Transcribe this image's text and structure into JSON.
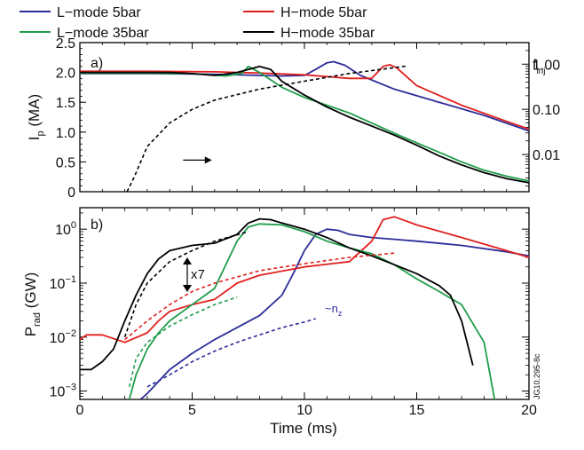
{
  "chart_data": [
    {
      "type": "line",
      "panel_label": "a)",
      "ylabel_main": "I",
      "ylabel_sub": "p",
      "ylabel_unit": " (MA)",
      "ylim": [
        0,
        2.5
      ],
      "yticks": [
        "0",
        "0.5",
        "1.0",
        "1.5",
        "2.0",
        "2.5"
      ],
      "xlim": [
        0,
        20
      ],
      "right_axis": {
        "label_main": "f",
        "label_sub": "inj",
        "scale": "log",
        "ylim": [
          0.0015,
          3.0
        ],
        "yticks": [
          "0.01",
          "0.10",
          "1.00"
        ]
      },
      "series": [
        {
          "name": "L−mode 5bar",
          "color": "#2d2d9a",
          "dash": "solid",
          "x": [
            0,
            3,
            6,
            8,
            9,
            10,
            10.5,
            11,
            11.3,
            11.8,
            12.5,
            14,
            16,
            18,
            20
          ],
          "y": [
            1.98,
            1.98,
            1.97,
            1.95,
            1.94,
            1.95,
            2.05,
            2.16,
            2.18,
            2.12,
            1.95,
            1.72,
            1.5,
            1.28,
            1.02
          ]
        },
        {
          "name": "H−mode 5bar",
          "color": "#e0201e",
          "dash": "solid",
          "x": [
            0,
            3,
            6,
            8,
            10,
            12,
            13,
            13.5,
            13.8,
            14.1,
            15,
            17,
            19,
            20
          ],
          "y": [
            2.02,
            2.02,
            2.01,
            1.99,
            1.96,
            1.9,
            1.9,
            2.1,
            2.13,
            2.08,
            1.78,
            1.45,
            1.18,
            1.05
          ]
        },
        {
          "name": "L−mode 35bar",
          "color": "#1f9e4a",
          "dash": "solid",
          "x": [
            0,
            3,
            5,
            6.5,
            7.2,
            7.5,
            8,
            9,
            10,
            11,
            12,
            13,
            14,
            15,
            16,
            17,
            18,
            19,
            20
          ],
          "y": [
            1.99,
            1.99,
            1.98,
            1.94,
            1.98,
            2.1,
            2.0,
            1.75,
            1.58,
            1.45,
            1.32,
            1.15,
            0.98,
            0.82,
            0.66,
            0.5,
            0.36,
            0.26,
            0.18
          ]
        },
        {
          "name": "H−mode 35bar",
          "color": "#000000",
          "dash": "solid",
          "x": [
            0,
            3,
            4,
            5,
            6,
            7,
            7.5,
            8,
            8.5,
            9,
            10,
            11,
            12,
            13,
            14,
            15,
            16,
            17,
            18,
            19,
            20
          ],
          "y": [
            2.0,
            2.0,
            2.0,
            1.98,
            1.95,
            2.0,
            2.05,
            2.1,
            2.05,
            1.85,
            1.62,
            1.42,
            1.25,
            1.1,
            0.95,
            0.78,
            0.6,
            0.45,
            0.32,
            0.22,
            0.15
          ]
        },
        {
          "name": "",
          "color": "#000000",
          "dash": "dashed",
          "axis": "right",
          "x": [
            2.1,
            2.4,
            3,
            4,
            5,
            6,
            8,
            10,
            12,
            14.5
          ],
          "y": [
            0.0015,
            0.003,
            0.015,
            0.05,
            0.1,
            0.16,
            0.28,
            0.42,
            0.62,
            0.9
          ]
        }
      ],
      "annotations": [
        {
          "type": "arrow",
          "direction": "right",
          "from": [
            4.6,
            0.5
          ],
          "to": [
            5.8,
            0.5
          ]
        }
      ]
    },
    {
      "type": "line",
      "panel_label": "b)",
      "ylabel_main": "P",
      "ylabel_sub": "rad",
      "ylabel_unit": " (GW)",
      "scale": "log",
      "ylim": [
        0.0007,
        2.5
      ],
      "yticks": [
        {
          "base": "10",
          "exp": "0"
        },
        {
          "base": "10",
          "exp": "−1"
        },
        {
          "base": "10",
          "exp": "−2"
        },
        {
          "base": "10",
          "exp": "−3"
        }
      ],
      "xlim": [
        0,
        20
      ],
      "xticks": [
        "0",
        "5",
        "10",
        "15",
        "20"
      ],
      "xlabel": "Time (ms)",
      "series": [
        {
          "name": "L−mode 5bar",
          "color": "#2d2d9a",
          "dash": "solid",
          "x": [
            2.7,
            3,
            4,
            5,
            6,
            7,
            8,
            9,
            9.5,
            10,
            10.5,
            11,
            11.5,
            12,
            13,
            14,
            15,
            17,
            19,
            20
          ],
          "y": [
            0.0007,
            0.0009,
            0.0025,
            0.005,
            0.009,
            0.015,
            0.025,
            0.06,
            0.15,
            0.4,
            0.8,
            1.0,
            0.95,
            0.8,
            0.7,
            0.65,
            0.6,
            0.5,
            0.38,
            0.32
          ]
        },
        {
          "name": "H−mode 5bar",
          "color": "#e0201e",
          "dash": "solid",
          "x": [
            0,
            0.3,
            1,
            2,
            3,
            3.5,
            4,
            5,
            6,
            7,
            8,
            10,
            12,
            13,
            13.5,
            14,
            15,
            17,
            19,
            20
          ],
          "y": [
            0.009,
            0.011,
            0.011,
            0.008,
            0.012,
            0.02,
            0.03,
            0.04,
            0.05,
            0.1,
            0.14,
            0.2,
            0.25,
            0.6,
            1.5,
            1.7,
            1.2,
            0.7,
            0.4,
            0.3
          ]
        },
        {
          "name": "L−mode 35bar",
          "color": "#1f9e4a",
          "dash": "solid",
          "x": [
            2.2,
            2.5,
            3,
            3.5,
            4,
            5,
            6,
            7,
            7.5,
            8,
            9,
            10,
            11,
            12,
            13,
            14,
            15,
            16,
            17,
            18,
            18.5
          ],
          "y": [
            0.0007,
            0.002,
            0.006,
            0.012,
            0.02,
            0.04,
            0.08,
            0.6,
            1.1,
            1.25,
            1.2,
            0.9,
            0.6,
            0.45,
            0.35,
            0.22,
            0.12,
            0.07,
            0.04,
            0.008,
            0.0006
          ]
        },
        {
          "name": "H−mode 35bar",
          "color": "#000000",
          "dash": "solid",
          "x": [
            0,
            0.5,
            1,
            1.5,
            2,
            2.5,
            3,
            3.5,
            4,
            5,
            6,
            7,
            7.5,
            8,
            8.5,
            9,
            10,
            11,
            12,
            13,
            14,
            15,
            16,
            16.5,
            17,
            17.5
          ],
          "y": [
            0.0025,
            0.0025,
            0.0035,
            0.006,
            0.02,
            0.06,
            0.15,
            0.28,
            0.4,
            0.5,
            0.55,
            0.8,
            1.3,
            1.55,
            1.5,
            1.3,
            1.0,
            0.7,
            0.45,
            0.32,
            0.22,
            0.15,
            0.09,
            0.06,
            0.02,
            0.003
          ]
        },
        {
          "name": "",
          "color": "#000000",
          "dash": "dashed",
          "x": [
            2,
            2.5,
            3,
            4,
            5,
            6,
            7.5
          ],
          "y": [
            0.01,
            0.04,
            0.1,
            0.25,
            0.4,
            0.6,
            0.9
          ]
        },
        {
          "name": "",
          "color": "#e0201e",
          "dash": "dashed",
          "x": [
            2,
            3,
            4,
            5,
            6,
            8,
            10,
            12,
            14
          ],
          "y": [
            0.009,
            0.02,
            0.04,
            0.07,
            0.1,
            0.17,
            0.23,
            0.3,
            0.36
          ]
        },
        {
          "name": "",
          "color": "#1f9e4a",
          "dash": "dashed",
          "x": [
            2.2,
            2.5,
            3,
            4,
            5,
            6,
            7
          ],
          "y": [
            0.0012,
            0.004,
            0.008,
            0.016,
            0.026,
            0.04,
            0.055
          ]
        },
        {
          "name": "",
          "color": "#2d2d9a",
          "dash": "dashed",
          "x": [
            3,
            4,
            5,
            6,
            7,
            8,
            9,
            10,
            10.5
          ],
          "y": [
            0.0012,
            0.002,
            0.0035,
            0.0055,
            0.008,
            0.011,
            0.015,
            0.019,
            0.022
          ]
        }
      ],
      "annotations": [
        {
          "type": "text",
          "text": "x7"
        },
        {
          "type": "text",
          "text_main": "~n",
          "text_sub": "z",
          "color": "#2d2d9a"
        }
      ]
    }
  ],
  "legend": {
    "placement": "top",
    "entries": [
      {
        "label": "L−mode 5bar",
        "color": "#2d2d9a"
      },
      {
        "label": "H−mode 5bar",
        "color": "#e0201e"
      },
      {
        "label": "L−mode 35bar",
        "color": "#1f9e4a"
      },
      {
        "label": "H−mode 35bar",
        "color": "#000000"
      }
    ]
  },
  "side_label": "JG10.295-8c"
}
